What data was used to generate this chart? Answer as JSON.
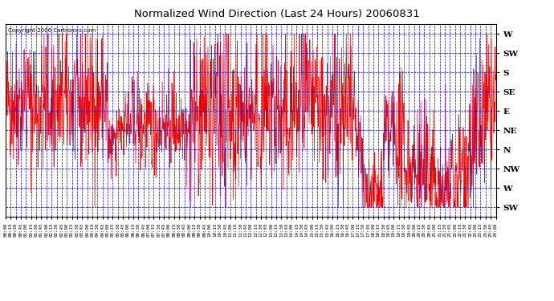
{
  "title": "Normalized Wind Direction (Last 24 Hours) 20060831",
  "copyright_text": "Copyright 2006 Cartronics.com",
  "y_labels": [
    "W",
    "SW",
    "S",
    "SE",
    "E",
    "NE",
    "N",
    "NW",
    "W",
    "SW"
  ],
  "y_values": [
    9,
    8,
    7,
    6,
    5,
    4,
    3,
    2,
    1,
    0
  ],
  "y_min": -0.5,
  "y_max": 9.5,
  "bg_color": "#ffffff",
  "plot_bg_color": "#ffffff",
  "line_color": "#ff0000",
  "grid_color": "#0000cc",
  "border_color": "#000000",
  "title_color": "#000000",
  "copyright_color": "#000000",
  "seed": 42
}
